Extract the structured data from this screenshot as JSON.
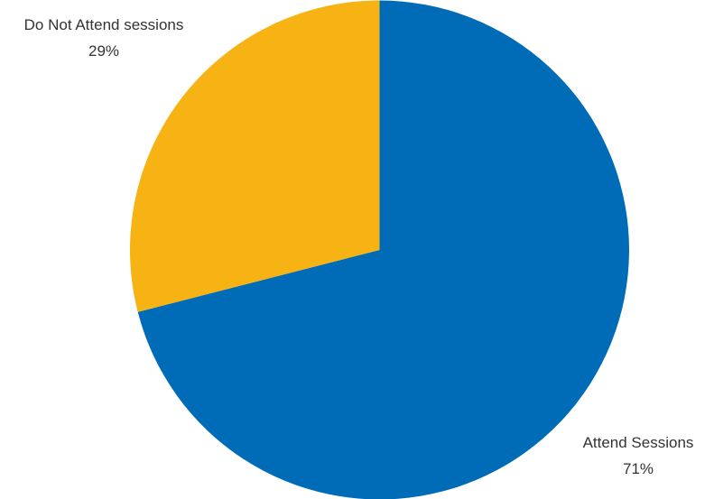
{
  "chart_data": {
    "type": "pie",
    "title": "",
    "start_angle_deg": 0,
    "direction": "clockwise",
    "slices": [
      {
        "label": "Attend Sessions",
        "value": 71,
        "value_label": "71%",
        "color": "#006CB8"
      },
      {
        "label": "Do Not Attend sessions",
        "value": 29,
        "value_label": "29%",
        "color": "#F7B213"
      }
    ],
    "legend": "none"
  }
}
